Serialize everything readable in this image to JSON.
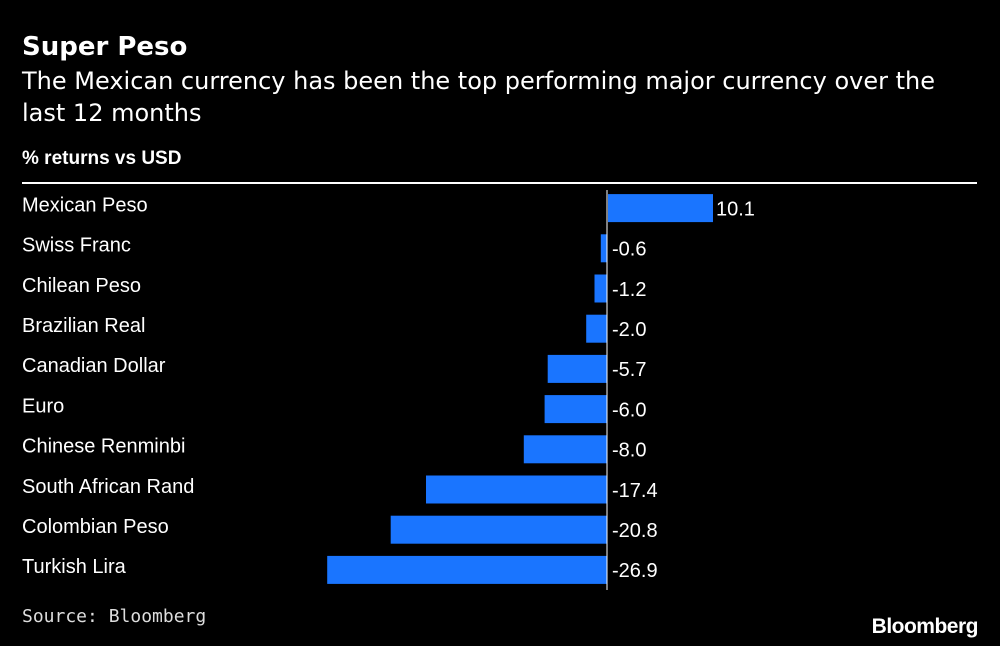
{
  "chart_data": {
    "type": "bar",
    "orientation": "horizontal",
    "title": "Super Peso",
    "subtitle": "The Mexican currency has been the top performing major currency over the last 12 months",
    "unit_label": "% returns vs USD",
    "categories": [
      "Mexican Peso",
      "Swiss Franc",
      "Chilean Peso",
      "Brazilian Real",
      "Canadian Dollar",
      "Euro",
      "Chinese Renminbi",
      "South African Rand",
      "Colombian Peso",
      "Turkish Lira"
    ],
    "values": [
      10.1,
      -0.6,
      -1.2,
      -2.0,
      -5.7,
      -6.0,
      -8.0,
      -17.4,
      -20.8,
      -26.9
    ],
    "value_labels": [
      "10.1",
      "-0.6",
      "-1.2",
      "-2.0",
      "-5.7",
      "-6.0",
      "-8.0",
      "-17.4",
      "-20.8",
      "-26.9"
    ],
    "xlim": [
      -26.9,
      10.1
    ],
    "bar_color": "#1a75ff",
    "grid": false,
    "legend": "none"
  },
  "footer": {
    "source": "Source: Bloomberg",
    "brand": "Bloomberg"
  }
}
